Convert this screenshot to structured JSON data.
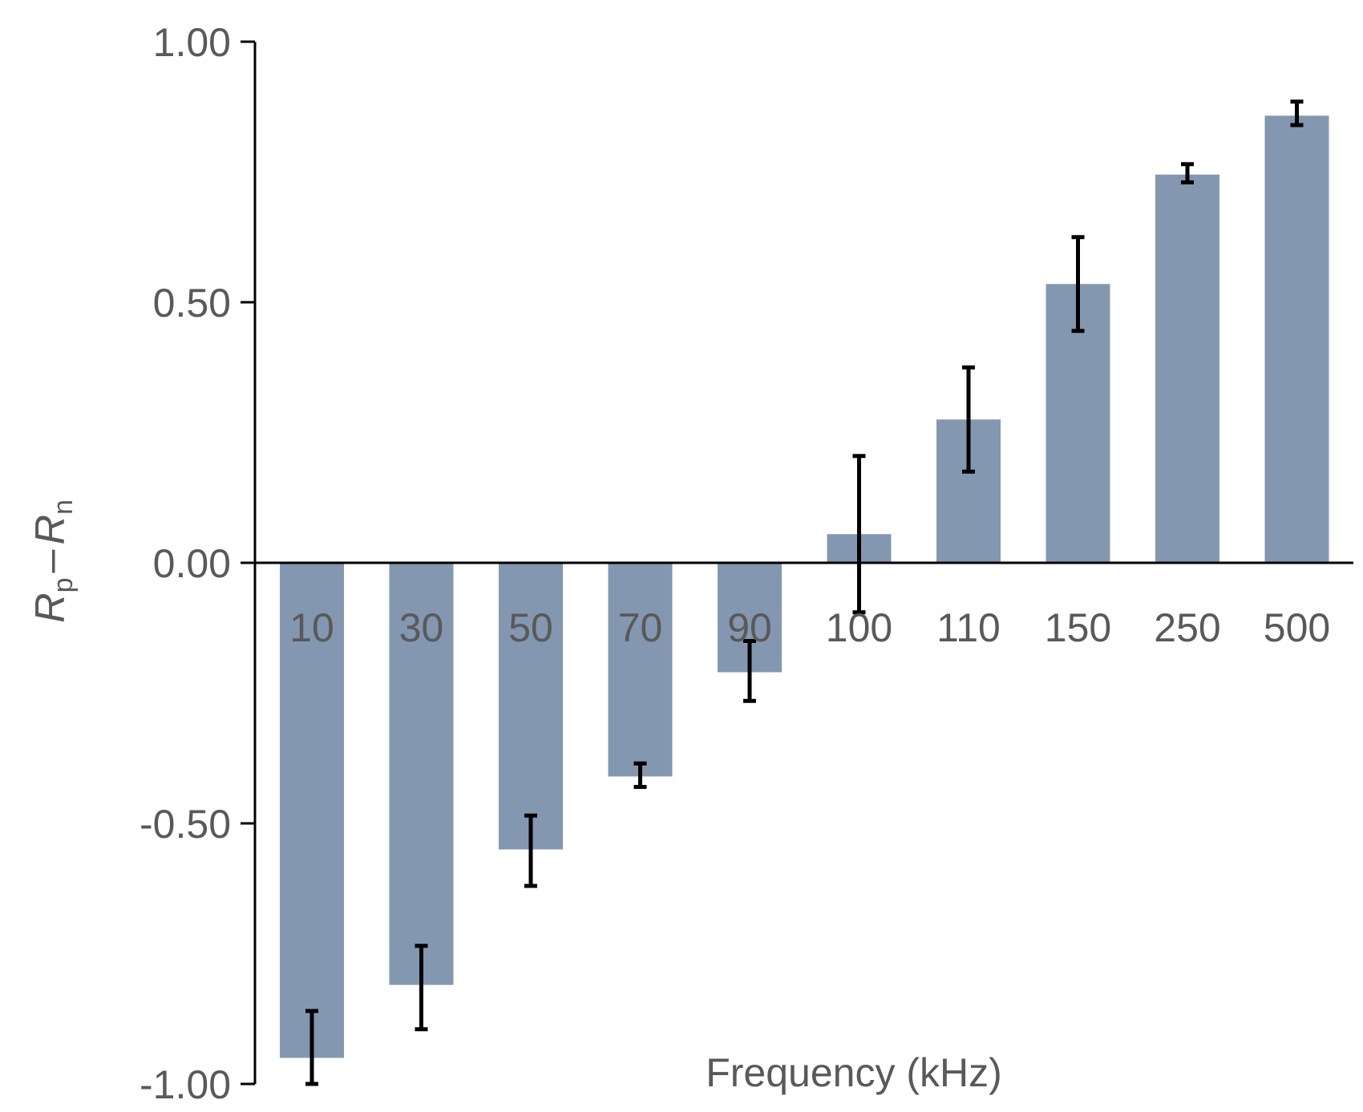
{
  "chart_data": {
    "type": "bar",
    "categories": [
      "10",
      "30",
      "50",
      "70",
      "90",
      "100",
      "110",
      "150",
      "250",
      "500"
    ],
    "values": [
      -0.95,
      -0.81,
      -0.55,
      -0.41,
      -0.21,
      0.055,
      0.275,
      0.535,
      0.745,
      0.858
    ],
    "error_low": [
      -1.0,
      -0.895,
      -0.62,
      -0.43,
      -0.265,
      -0.095,
      0.175,
      0.445,
      0.73,
      0.84
    ],
    "error_high": [
      -0.86,
      -0.735,
      -0.485,
      -0.385,
      -0.15,
      0.205,
      0.375,
      0.625,
      0.765,
      0.885
    ],
    "title": "",
    "xlabel": "Frequency (kHz)",
    "ylabel": {
      "var1": "R",
      "sub1": "p",
      "dash": "–",
      "var2": "R",
      "sub2": "n"
    },
    "ylim": [
      -1.0,
      1.0
    ],
    "yticks": [
      1.0,
      0.5,
      0.0,
      -0.5,
      -1.0
    ],
    "ytick_labels": [
      "1.00",
      "0.50",
      "0.00",
      "-0.50",
      "-1.00"
    ],
    "grid": false,
    "bar_color": "#8497b0",
    "error_color": "#000000"
  }
}
